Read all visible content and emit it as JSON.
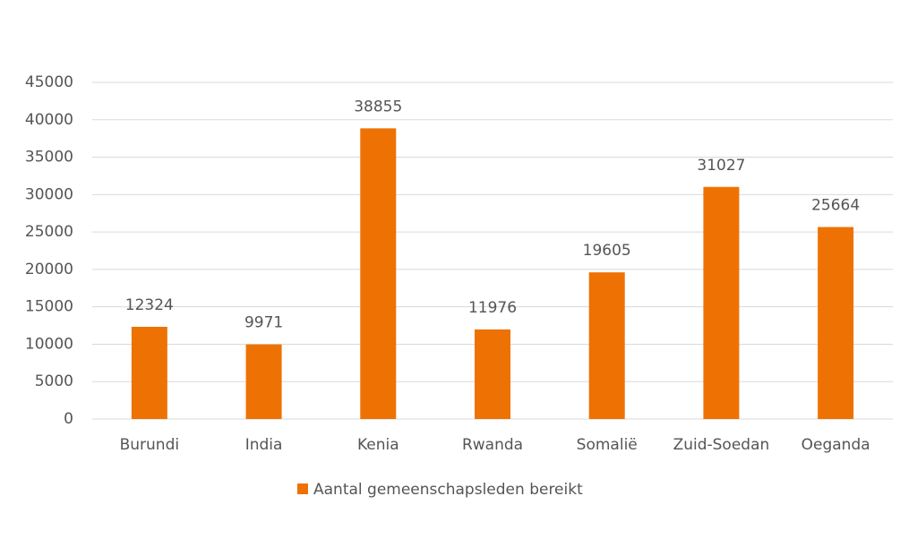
{
  "chart_data": {
    "type": "bar",
    "categories": [
      "Burundi",
      "India",
      "Kenia",
      "Rwanda",
      "Somalië",
      "Zuid-Soedan",
      "Oeganda"
    ],
    "series": [
      {
        "name": "Aantal gemeenschapsleden bereikt",
        "color": "#ee7203",
        "values": [
          12324,
          9971,
          38855,
          11976,
          19605,
          31027,
          25664
        ]
      }
    ],
    "ylim": [
      0,
      45000
    ],
    "yticks": [
      0,
      5000,
      10000,
      15000,
      20000,
      25000,
      30000,
      35000,
      40000,
      45000
    ],
    "grid": true,
    "legend": "bottom",
    "data_labels": true
  }
}
